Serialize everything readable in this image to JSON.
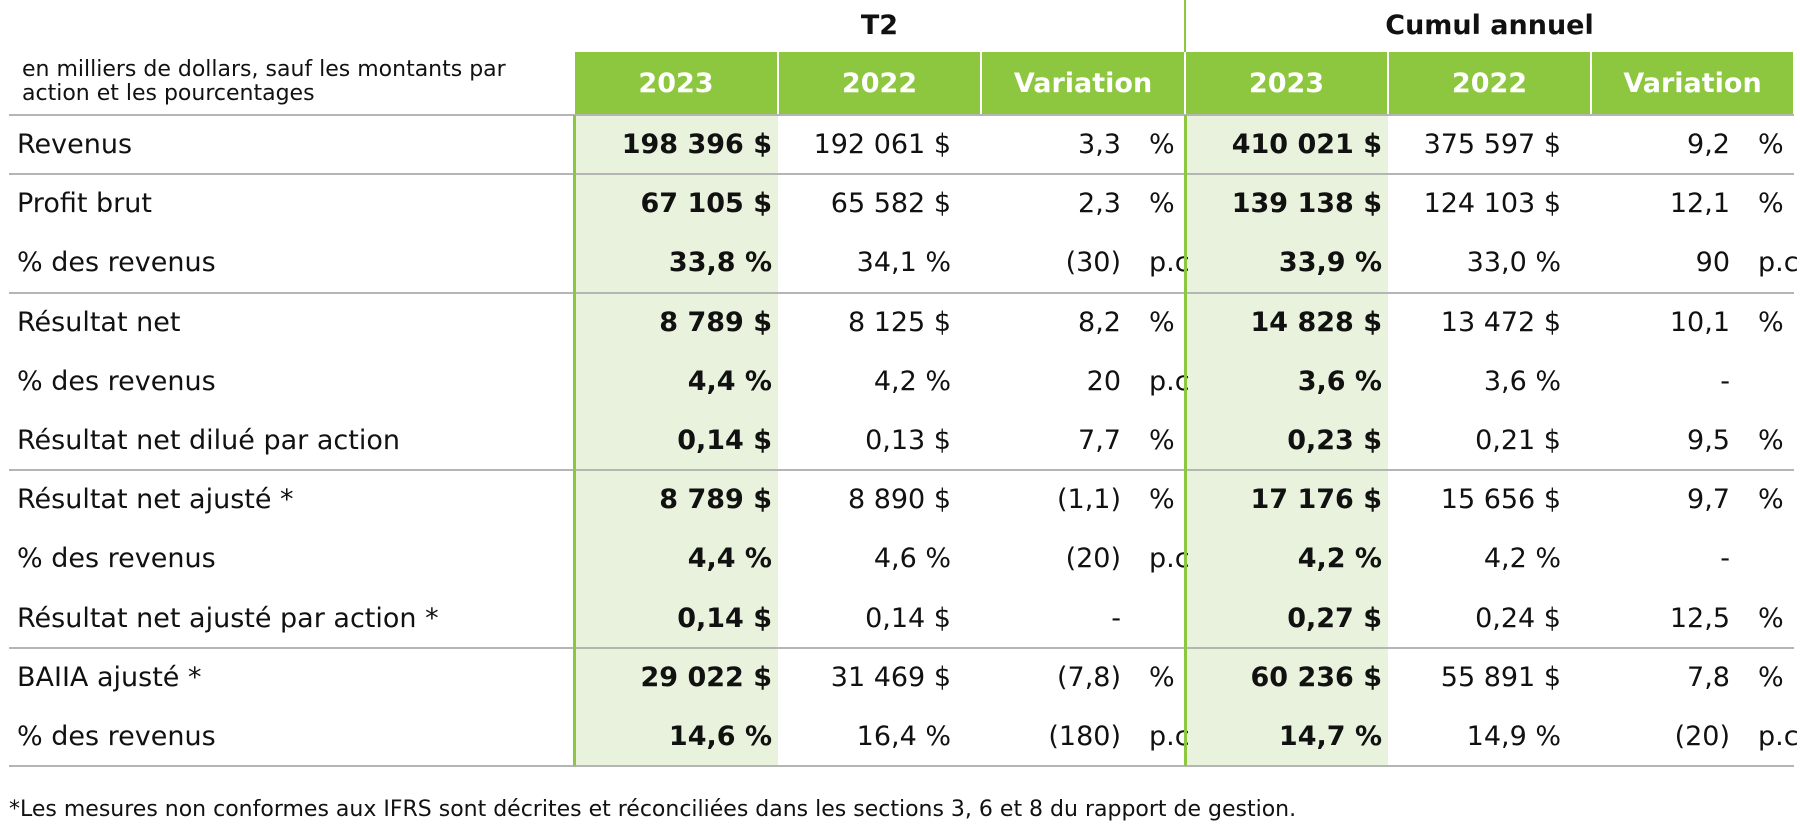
{
  "header": {
    "note": "en milliers de dollars, sauf les montants par action et les pourcentages",
    "groups": [
      "T2",
      "Cumul annuel"
    ],
    "columns": [
      "2023",
      "2022",
      "Variation",
      "2023",
      "2022",
      "Variation"
    ]
  },
  "table": {
    "rows": [
      {
        "label": "Revenus",
        "cells": [
          "198 396 $",
          "192 061 $",
          [
            "3,3",
            "%"
          ],
          "410 021 $",
          "375 597 $",
          [
            "9,2",
            "%"
          ]
        ]
      },
      {
        "label": "Profit brut",
        "cells": [
          "67 105 $",
          "65 582 $",
          [
            "2,3",
            "%"
          ],
          "139 138 $",
          "124 103 $",
          [
            "12,1",
            "%"
          ]
        ]
      },
      {
        "label": "% des revenus",
        "cells": [
          "33,8 %",
          "34,1 %",
          [
            "(30)",
            "p.c"
          ],
          "33,9 %",
          "33,0 %",
          [
            "90",
            "p.c"
          ]
        ]
      },
      {
        "label": "Résultat net",
        "cells": [
          "8 789 $",
          "8 125 $",
          [
            "8,2",
            "%"
          ],
          "14 828 $",
          "13 472 $",
          [
            "10,1",
            "%"
          ]
        ]
      },
      {
        "label": "% des revenus",
        "cells": [
          "4,4 %",
          "4,2 %",
          [
            "20",
            "p.c"
          ],
          "3,6 %",
          "3,6 %",
          [
            "-"
          ]
        ]
      },
      {
        "label": "Résultat net dilué par action",
        "cells": [
          "0,14 $",
          "0,13 $",
          [
            "7,7",
            "%"
          ],
          "0,23 $",
          "0,21 $",
          [
            "9,5",
            "%"
          ]
        ]
      },
      {
        "label": "Résultat net ajusté *",
        "cells": [
          "8 789 $",
          "8 890 $",
          [
            "(1,1)",
            "%"
          ],
          "17 176 $",
          "15 656 $",
          [
            "9,7",
            "%"
          ]
        ]
      },
      {
        "label": "% des revenus",
        "cells": [
          "4,4 %",
          "4,6 %",
          [
            "(20)",
            "p.c"
          ],
          "4,2 %",
          "4,2 %",
          [
            "-"
          ]
        ]
      },
      {
        "label": "Résultat net ajusté par action *",
        "cells": [
          "0,14 $",
          "0,14 $",
          [
            "-"
          ],
          "0,27 $",
          "0,24 $",
          [
            "12,5",
            "%"
          ]
        ]
      },
      {
        "label": "BAIIA ajusté *",
        "cells": [
          "29 022 $",
          "31 469 $",
          [
            "(7,8)",
            "%"
          ],
          "60 236 $",
          "55 891 $",
          [
            "7,8",
            "%"
          ]
        ]
      },
      {
        "label": "% des revenus",
        "cells": [
          "14,6 %",
          "16,4 %",
          [
            "(180)",
            "p.c"
          ],
          "14,7 %",
          "14,9 %",
          [
            "(20)",
            "p.c"
          ]
        ]
      }
    ]
  },
  "footnote": "*Les mesures non conformes aux IFRS sont décrites et réconciliées dans les sections 3, 6 et 8 du rapport de gestion."
}
